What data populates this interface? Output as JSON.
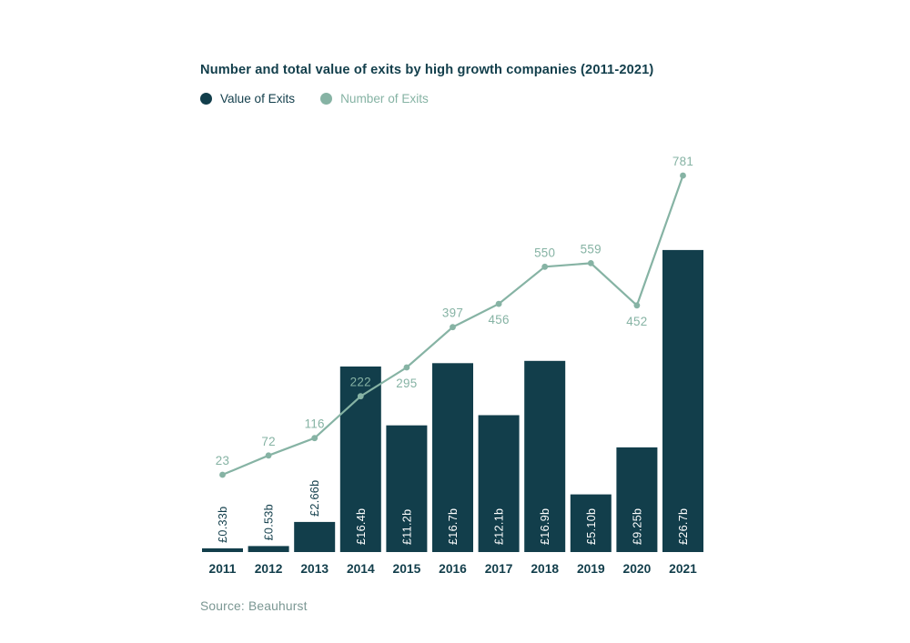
{
  "header": {
    "title": "Number and total value of exits by high growth companies (2011-2021)"
  },
  "legend": {
    "items": [
      {
        "label": "Value of Exits",
        "color": "#123E4B"
      },
      {
        "label": "Number of Exits",
        "color": "#86B3A4"
      }
    ]
  },
  "source": {
    "text": "Source: Beauhurst"
  },
  "chart_data": {
    "type": "bar",
    "subtype": "bar-with-line-overlay",
    "title": "Number and total value of exits by high growth companies (2011-2021)",
    "categories": [
      "2011",
      "2012",
      "2013",
      "2014",
      "2015",
      "2016",
      "2017",
      "2018",
      "2019",
      "2020",
      "2021"
    ],
    "series": [
      {
        "name": "Value of Exits",
        "type": "bar",
        "unit": "£ billions",
        "values": [
          0.33,
          0.53,
          2.66,
          16.4,
          11.2,
          16.7,
          12.1,
          16.9,
          5.1,
          9.25,
          26.7
        ],
        "labels": [
          "£0.33b",
          "£0.53b",
          "£2.66b",
          "£16.4b",
          "£11.2b",
          "£16.7b",
          "£12.1b",
          "£16.9b",
          "£5.10b",
          "£9.25b",
          "£26.7b"
        ],
        "color": "#123E4B"
      },
      {
        "name": "Number of Exits",
        "type": "line",
        "values": [
          23,
          72,
          116,
          222,
          295,
          397,
          456,
          550,
          559,
          452,
          781
        ],
        "label_positions": [
          "above",
          "above",
          "above",
          "above",
          "below",
          "above",
          "below",
          "above",
          "above",
          "below",
          "above"
        ],
        "color": "#86B3A4"
      }
    ],
    "legend_position": "top-left",
    "grid": false,
    "axes": {
      "x_labels_visible": true,
      "y_axis_visible": false
    }
  }
}
